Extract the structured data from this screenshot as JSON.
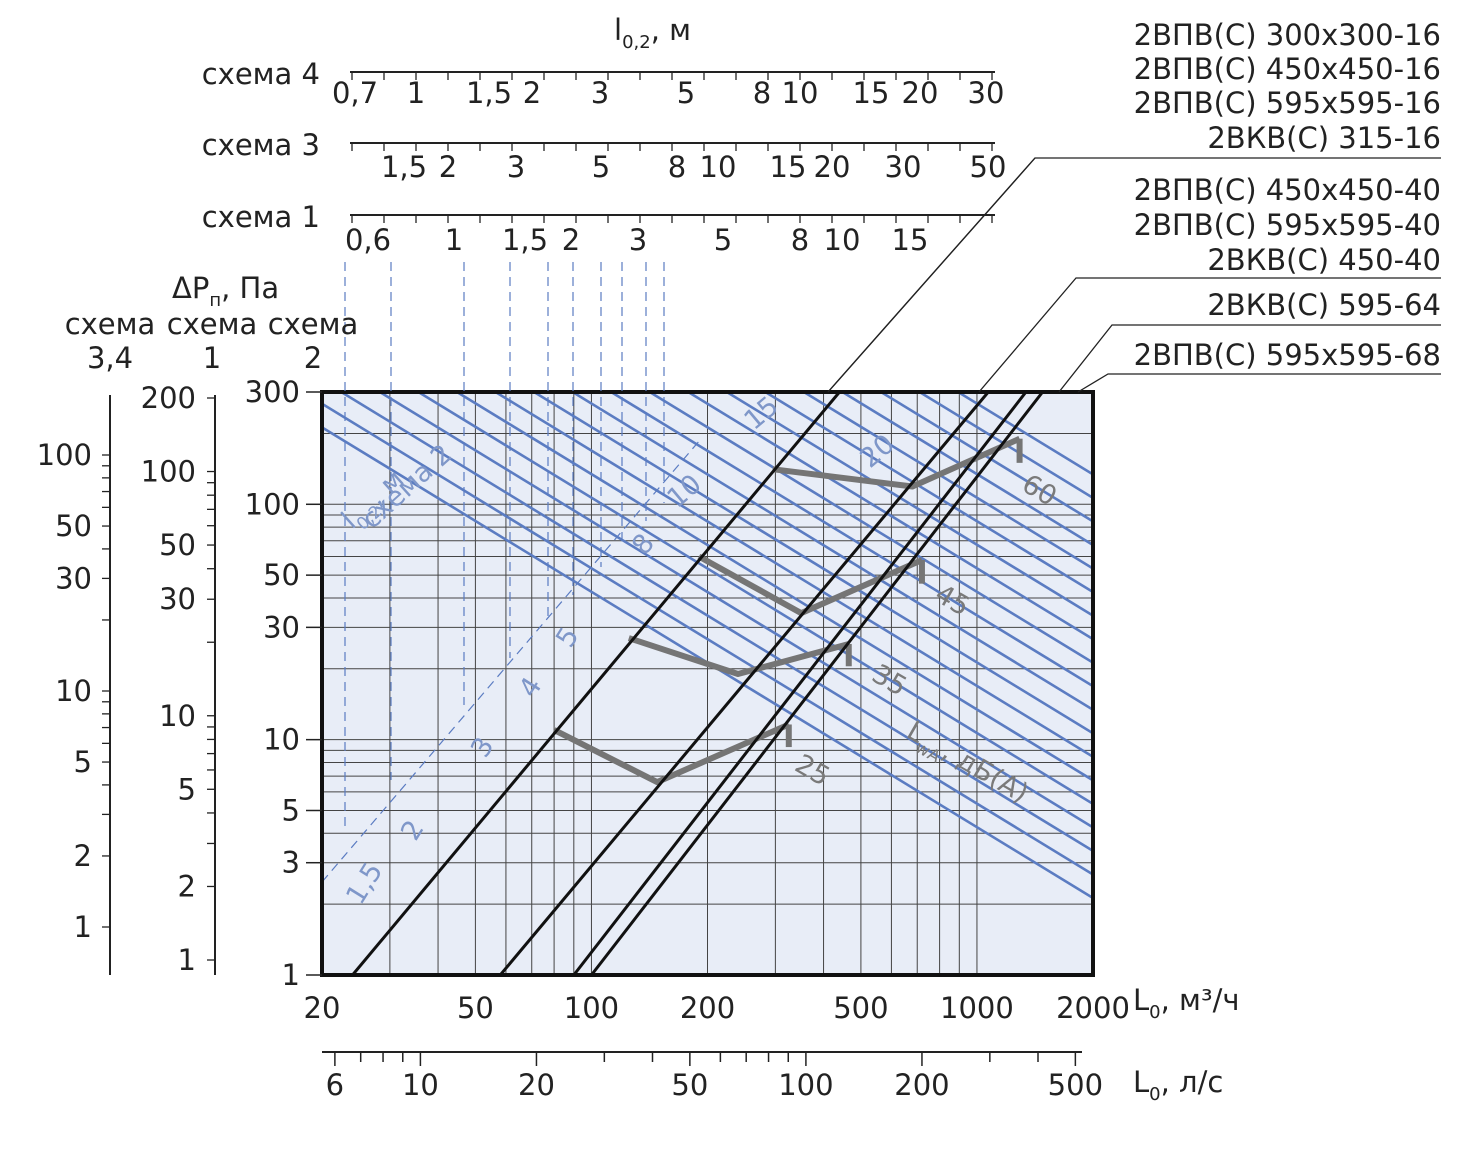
{
  "chart_data": {
    "type": "line",
    "x_axis": {
      "scale": "log",
      "range": [
        20,
        2000
      ],
      "label": "L",
      "label_sub": "0",
      "label_unit": ", м³/ч",
      "ticks": [
        20,
        50,
        100,
        200,
        500,
        1000,
        2000
      ],
      "tick_labels": [
        "20",
        "50",
        "100",
        "200",
        "500",
        "1000",
        "2000"
      ]
    },
    "x2_axis": {
      "scale": "log",
      "label": "L",
      "label_sub": "0",
      "label_unit": ", л/с",
      "ticks": [
        6,
        10,
        20,
        50,
        100,
        200,
        500
      ],
      "tick_labels": [
        "6",
        "10",
        "20",
        "50",
        "100",
        "200",
        "500"
      ]
    },
    "y_axis": {
      "scale": "log",
      "range": [
        1,
        300
      ],
      "ticks": [
        1,
        3,
        5,
        10,
        30,
        50,
        100,
        300
      ],
      "tick_labels": [
        "1",
        "3",
        "5",
        "10",
        "30",
        "50",
        "100",
        "300"
      ]
    },
    "pressure_header": {
      "label": "ΔP",
      "label_sub": "п",
      "label_unit": ", Па",
      "columns": [
        {
          "scheme": "схема",
          "number": "3,4"
        },
        {
          "scheme": "схема",
          "number": "1"
        },
        {
          "scheme": "схема",
          "number": "2"
        }
      ]
    },
    "pressure_scales": [
      {
        "name": "схема 3,4",
        "ticks": [
          1,
          2,
          5,
          10,
          30,
          50,
          100
        ]
      },
      {
        "name": "схема 1",
        "ticks": [
          1,
          2,
          5,
          10,
          30,
          50,
          100,
          200
        ]
      }
    ],
    "throw_header": {
      "label": "l",
      "label_sub": "0,2",
      "label_unit": ", м"
    },
    "throw_scales": [
      {
        "name": "схема 4",
        "ticks": [
          "0,7",
          "1",
          "1,5",
          "2",
          "3",
          "5",
          "8",
          "10",
          "15",
          "20",
          "30"
        ]
      },
      {
        "name": "схема 3",
        "ticks": [
          "1,5",
          "2",
          "3",
          "5",
          "8",
          "10",
          "15",
          "20",
          "30",
          "50"
        ]
      },
      {
        "name": "схема 1",
        "ticks": [
          "0,6",
          "1",
          "1,5",
          "2",
          "3",
          "5",
          "8",
          "10",
          "15"
        ]
      }
    ],
    "throw_isolines_label": {
      "text": "l",
      "sub": "0,2",
      "unit": ", м",
      "scheme": "схема 2"
    },
    "throw_isolines": [
      "1,5",
      "2",
      "3",
      "4",
      "5",
      "8",
      "10",
      "15",
      "20"
    ],
    "series": [
      {
        "name": "2ВПВ(С) 300х300-16\n2ВПВ(С) 450х450-16\n2ВПВ(С) 595х595-16\n2ВКВ(С) 315-16",
        "x": [
          24,
          440
        ],
        "y": [
          1,
          300
        ]
      },
      {
        "name": "2ВПВ(С) 450х450-40\n2ВПВ(С) 595х595-40\n2ВКВ(С) 450-40",
        "x": [
          58,
          1070
        ],
        "y": [
          1,
          300
        ]
      },
      {
        "name": "2ВКВ(С) 595-64",
        "x": [
          90,
          1340
        ],
        "y": [
          1,
          300
        ]
      },
      {
        "name": "2ВПВ(С) 595х595-68",
        "x": [
          100,
          1480
        ],
        "y": [
          1,
          300
        ]
      }
    ],
    "noise_curves": [
      {
        "label": "25",
        "points": [
          [
            80,
            11
          ],
          [
            148,
            6.6
          ],
          [
            325,
            11.6
          ]
        ],
        "end_drop": [
          325,
          9.3
        ]
      },
      {
        "label": "35",
        "points": [
          [
            125,
            27
          ],
          [
            240,
            19
          ],
          [
            465,
            25.5
          ]
        ],
        "end_drop": [
          465,
          20.5
        ]
      },
      {
        "label": "45",
        "points": [
          [
            190,
            60
          ],
          [
            350,
            34.5
          ],
          [
            720,
            58
          ]
        ],
        "end_drop": [
          720,
          46
        ]
      },
      {
        "label": "60",
        "points": [
          [
            295,
            141
          ],
          [
            680,
            119
          ],
          [
            1290,
            190
          ]
        ],
        "end_drop": [
          1290,
          150
        ]
      }
    ],
    "noise_label": {
      "text": "L",
      "sub": "wA",
      "unit": ", дБ(А)"
    },
    "legend_labels": [
      "2ВПВ(С) 300х300-16",
      "2ВПВ(С) 450х450-16",
      "2ВПВ(С) 595х595-16",
      "2ВКВ(С) 315-16",
      "2ВПВ(С) 450х450-40",
      "2ВПВ(С) 595х595-40",
      "2ВКВ(С) 450-40",
      "2ВКВ(С) 595-64",
      "2ВПВ(С) 595х595-68"
    ],
    "grid": true,
    "legend": "top-right",
    "colors": {
      "plot_bg": "#e8edf7",
      "isoline": "#5b7cc2",
      "isoline_label": "#7f97c9",
      "noise": "#757575",
      "series": "#111111"
    }
  }
}
